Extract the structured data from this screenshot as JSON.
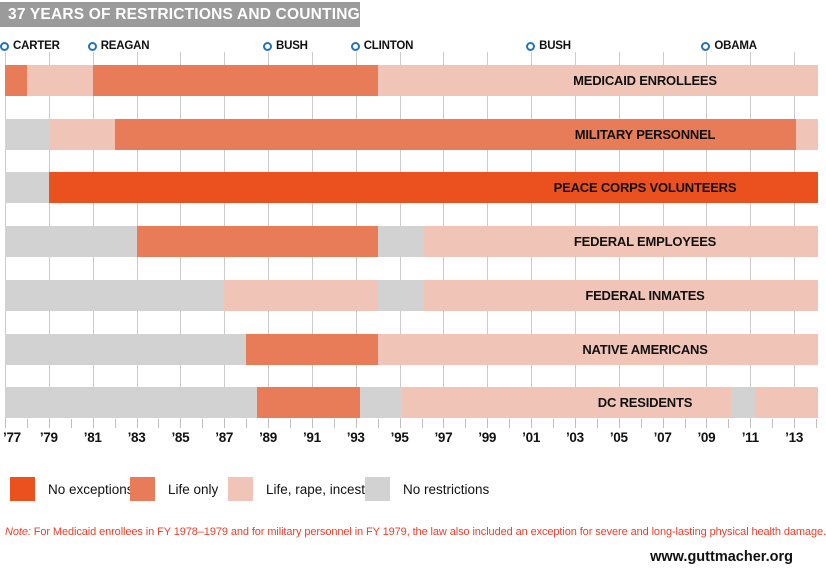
{
  "header": {
    "title": "37 YEARS OF RESTRICTIONS AND COUNTING"
  },
  "presidents": [
    {
      "label": "CARTER",
      "year": 1977
    },
    {
      "label": "REAGAN",
      "year": 1981
    },
    {
      "label": "BUSH",
      "year": 1989
    },
    {
      "label": "CLINTON",
      "year": 1993
    },
    {
      "label": "BUSH",
      "year": 2001
    },
    {
      "label": "OBAMA",
      "year": 2009
    }
  ],
  "chart_data": {
    "type": "bar",
    "subtype": "horizontal-timeline",
    "title": "37 YEARS OF RESTRICTIONS AND COUNTING",
    "x_axis": {
      "start_year": 1977,
      "end_year": 2014.1,
      "gridline_years": [
        1977,
        1979,
        1981,
        1983,
        1985,
        1987,
        1989,
        1991,
        1993,
        1995,
        1997,
        1999,
        2001,
        2003,
        2005,
        2007,
        2009,
        2011,
        2013
      ],
      "minor_ticks_every_year": true,
      "ticks": [
        {
          "year": 1977,
          "label": "’77"
        },
        {
          "year": 1979,
          "label": "’79"
        },
        {
          "year": 1981,
          "label": "’81"
        },
        {
          "year": 1983,
          "label": "’83"
        },
        {
          "year": 1985,
          "label": "’85"
        },
        {
          "year": 1987,
          "label": "’87"
        },
        {
          "year": 1989,
          "label": "’89"
        },
        {
          "year": 1991,
          "label": "’91"
        },
        {
          "year": 1993,
          "label": "’93"
        },
        {
          "year": 1995,
          "label": "’95"
        },
        {
          "year": 1997,
          "label": "’97"
        },
        {
          "year": 1999,
          "label": "’99"
        },
        {
          "year": 2001,
          "label": "’01"
        },
        {
          "year": 2003,
          "label": "’03"
        },
        {
          "year": 2005,
          "label": "’05"
        },
        {
          "year": 2007,
          "label": "’07"
        },
        {
          "year": 2009,
          "label": "’09"
        },
        {
          "year": 2011,
          "label": "’11"
        },
        {
          "year": 2013,
          "label": "’13"
        }
      ]
    },
    "legend": [
      {
        "key": "no_exceptions",
        "label": "No exceptions"
      },
      {
        "key": "life_only",
        "label": "Life only"
      },
      {
        "key": "life_rape_incest",
        "label": "Life, rape, incest"
      },
      {
        "key": "no_restrictions",
        "label": "No restrictions"
      }
    ],
    "rows": [
      {
        "label": "MEDICAID ENROLLEES",
        "segments": [
          {
            "status": "life_only",
            "start": 1977,
            "end": 1978
          },
          {
            "status": "life_rape_incest",
            "start": 1978,
            "end": 1981
          },
          {
            "status": "life_only",
            "start": 1981,
            "end": 1994
          },
          {
            "status": "life_rape_incest",
            "start": 1994,
            "end": 2014.1
          }
        ]
      },
      {
        "label": "MILITARY PERSONNEL",
        "segments": [
          {
            "status": "no_restrictions",
            "start": 1977,
            "end": 1979
          },
          {
            "status": "life_rape_incest",
            "start": 1979,
            "end": 1982
          },
          {
            "status": "life_only",
            "start": 1982,
            "end": 2013.1
          },
          {
            "status": "life_rape_incest",
            "start": 2013.1,
            "end": 2014.1
          }
        ]
      },
      {
        "label": "PEACE CORPS VOLUNTEERS",
        "segments": [
          {
            "status": "no_restrictions",
            "start": 1977,
            "end": 1979
          },
          {
            "status": "no_exceptions",
            "start": 1979,
            "end": 2014.1
          }
        ]
      },
      {
        "label": "FEDERAL EMPLOYEES",
        "segments": [
          {
            "status": "no_restrictions",
            "start": 1977,
            "end": 1983
          },
          {
            "status": "life_only",
            "start": 1983,
            "end": 1994
          },
          {
            "status": "no_restrictions",
            "start": 1994,
            "end": 1996.1
          },
          {
            "status": "life_rape_incest",
            "start": 1996.1,
            "end": 2014.1
          }
        ]
      },
      {
        "label": "FEDERAL INMATES",
        "segments": [
          {
            "status": "no_restrictions",
            "start": 1977,
            "end": 1987
          },
          {
            "status": "life_rape_incest",
            "start": 1987,
            "end": 1994
          },
          {
            "status": "no_restrictions",
            "start": 1994,
            "end": 1996.1
          },
          {
            "status": "life_rape_incest",
            "start": 1996.1,
            "end": 2014.1
          }
        ]
      },
      {
        "label": "NATIVE AMERICANS",
        "segments": [
          {
            "status": "no_restrictions",
            "start": 1977,
            "end": 1988
          },
          {
            "status": "life_only",
            "start": 1988,
            "end": 1994
          },
          {
            "status": "life_rape_incest",
            "start": 1994,
            "end": 2014.1
          }
        ]
      },
      {
        "label": "DC RESIDENTS",
        "segments": [
          {
            "status": "no_restrictions",
            "start": 1977,
            "end": 1988.5
          },
          {
            "status": "life_only",
            "start": 1988.5,
            "end": 1993.2
          },
          {
            "status": "no_restrictions",
            "start": 1993.2,
            "end": 1995.1
          },
          {
            "status": "life_rape_incest",
            "start": 1995.1,
            "end": 2010.1
          },
          {
            "status": "no_restrictions",
            "start": 2010.1,
            "end": 2011.2
          },
          {
            "status": "life_rape_incest",
            "start": 2011.2,
            "end": 2014.1
          }
        ]
      }
    ]
  },
  "colors": {
    "no_exceptions": "#EA511E",
    "life_only": "#E97C58",
    "life_rape_incest": "#F0C5B8",
    "no_restrictions": "#D2D2D2",
    "title_bar": "#9B9B9B",
    "president_marker": "#2273B8",
    "gridline": "#CBCBCB",
    "axis_tick": "#BFBFBF",
    "note_text": "#E8402C"
  },
  "note": {
    "prefix": "Note:",
    "text": " For Medicaid enrollees in FY 1978–1979 and for military personnel in FY 1979, the law also included an exception for severe and long-lasting physical health damage."
  },
  "footer": {
    "website": "www.guttmacher.org"
  }
}
